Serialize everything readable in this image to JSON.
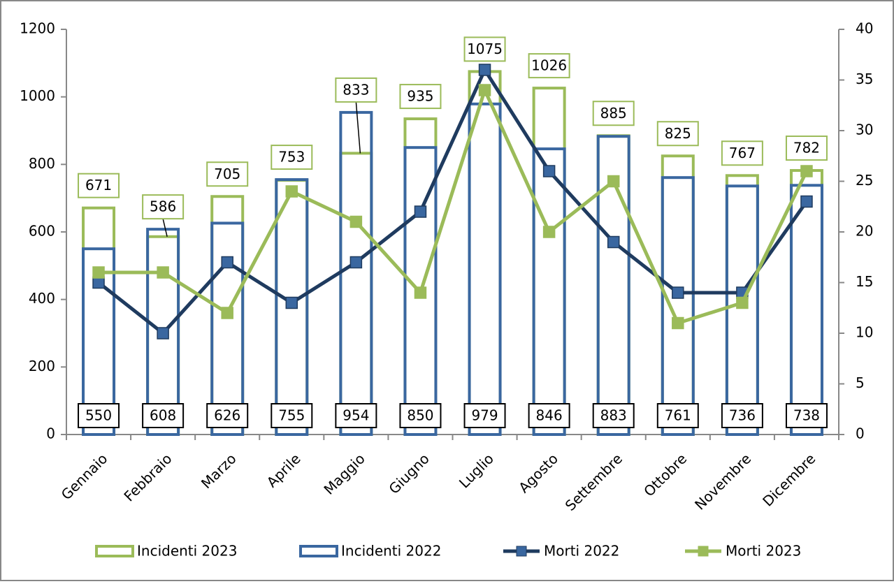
{
  "chart_data": {
    "type": "bar-line",
    "categories": [
      "Gennaio",
      "Febbraio",
      "Marzo",
      "Aprile",
      "Maggio",
      "Giugno",
      "Luglio",
      "Agosto",
      "Settembre",
      "Ottobre",
      "Novembre",
      "Dicembre"
    ],
    "series": [
      {
        "name": "Incidenti 2023",
        "type": "bar",
        "color": "#9bbb59",
        "values": [
          671,
          586,
          705,
          753,
          833,
          935,
          1075,
          1026,
          885,
          825,
          767,
          782
        ]
      },
      {
        "name": "Incidenti 2022",
        "type": "bar",
        "color": "#3a67a0",
        "values": [
          550,
          608,
          626,
          755,
          954,
          850,
          979,
          846,
          883,
          761,
          736,
          738
        ]
      },
      {
        "name": "Morti 2022",
        "type": "line",
        "axis": "y2",
        "color": "#1f3b5f",
        "marker_color": "#3a67a0",
        "values": [
          15,
          10,
          17,
          13,
          17,
          22,
          36,
          26,
          19,
          14,
          14,
          23
        ]
      },
      {
        "name": "Morti 2023",
        "type": "line",
        "axis": "y2",
        "color": "#9bbb59",
        "marker_color": "#9bbb59",
        "values": [
          16,
          16,
          12,
          24,
          21,
          14,
          34,
          20,
          25,
          11,
          13,
          26
        ]
      }
    ],
    "ylim": [
      0,
      1200
    ],
    "yticks": [
      0,
      200,
      400,
      600,
      800,
      1000,
      1200
    ],
    "y2lim": [
      0,
      40
    ],
    "y2ticks": [
      0,
      5,
      10,
      15,
      20,
      25,
      30,
      35,
      40
    ],
    "legend": "bottom"
  }
}
